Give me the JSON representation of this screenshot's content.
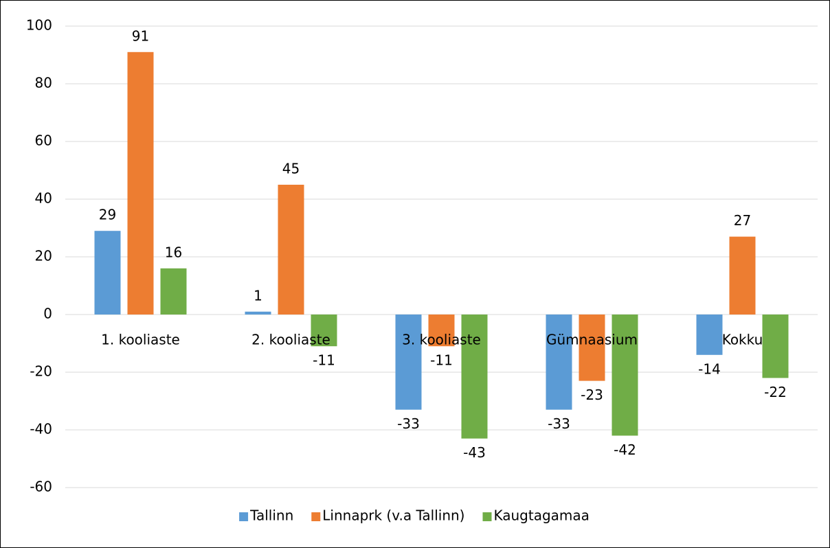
{
  "chart_data": {
    "type": "bar",
    "categories": [
      "1. kooliaste",
      "2. kooliaste",
      "3. kooliaste",
      "Gümnaasium",
      "Kokku"
    ],
    "series": [
      {
        "name": "Tallinn",
        "color": "#5b9bd5",
        "values": [
          29,
          1,
          -33,
          -33,
          -14
        ]
      },
      {
        "name": "Linnaprk (v.a Tallinn)",
        "color": "#ed7d31",
        "values": [
          91,
          45,
          -11,
          -23,
          27
        ]
      },
      {
        "name": "Kaugtagamaa",
        "color": "#70ad47",
        "values": [
          16,
          -11,
          -43,
          -42,
          -22
        ]
      }
    ],
    "ylim": [
      -60,
      100
    ],
    "yticks": [
      -60,
      -40,
      -20,
      0,
      20,
      40,
      60,
      80,
      100
    ],
    "grid": true,
    "legend": "bottom"
  }
}
